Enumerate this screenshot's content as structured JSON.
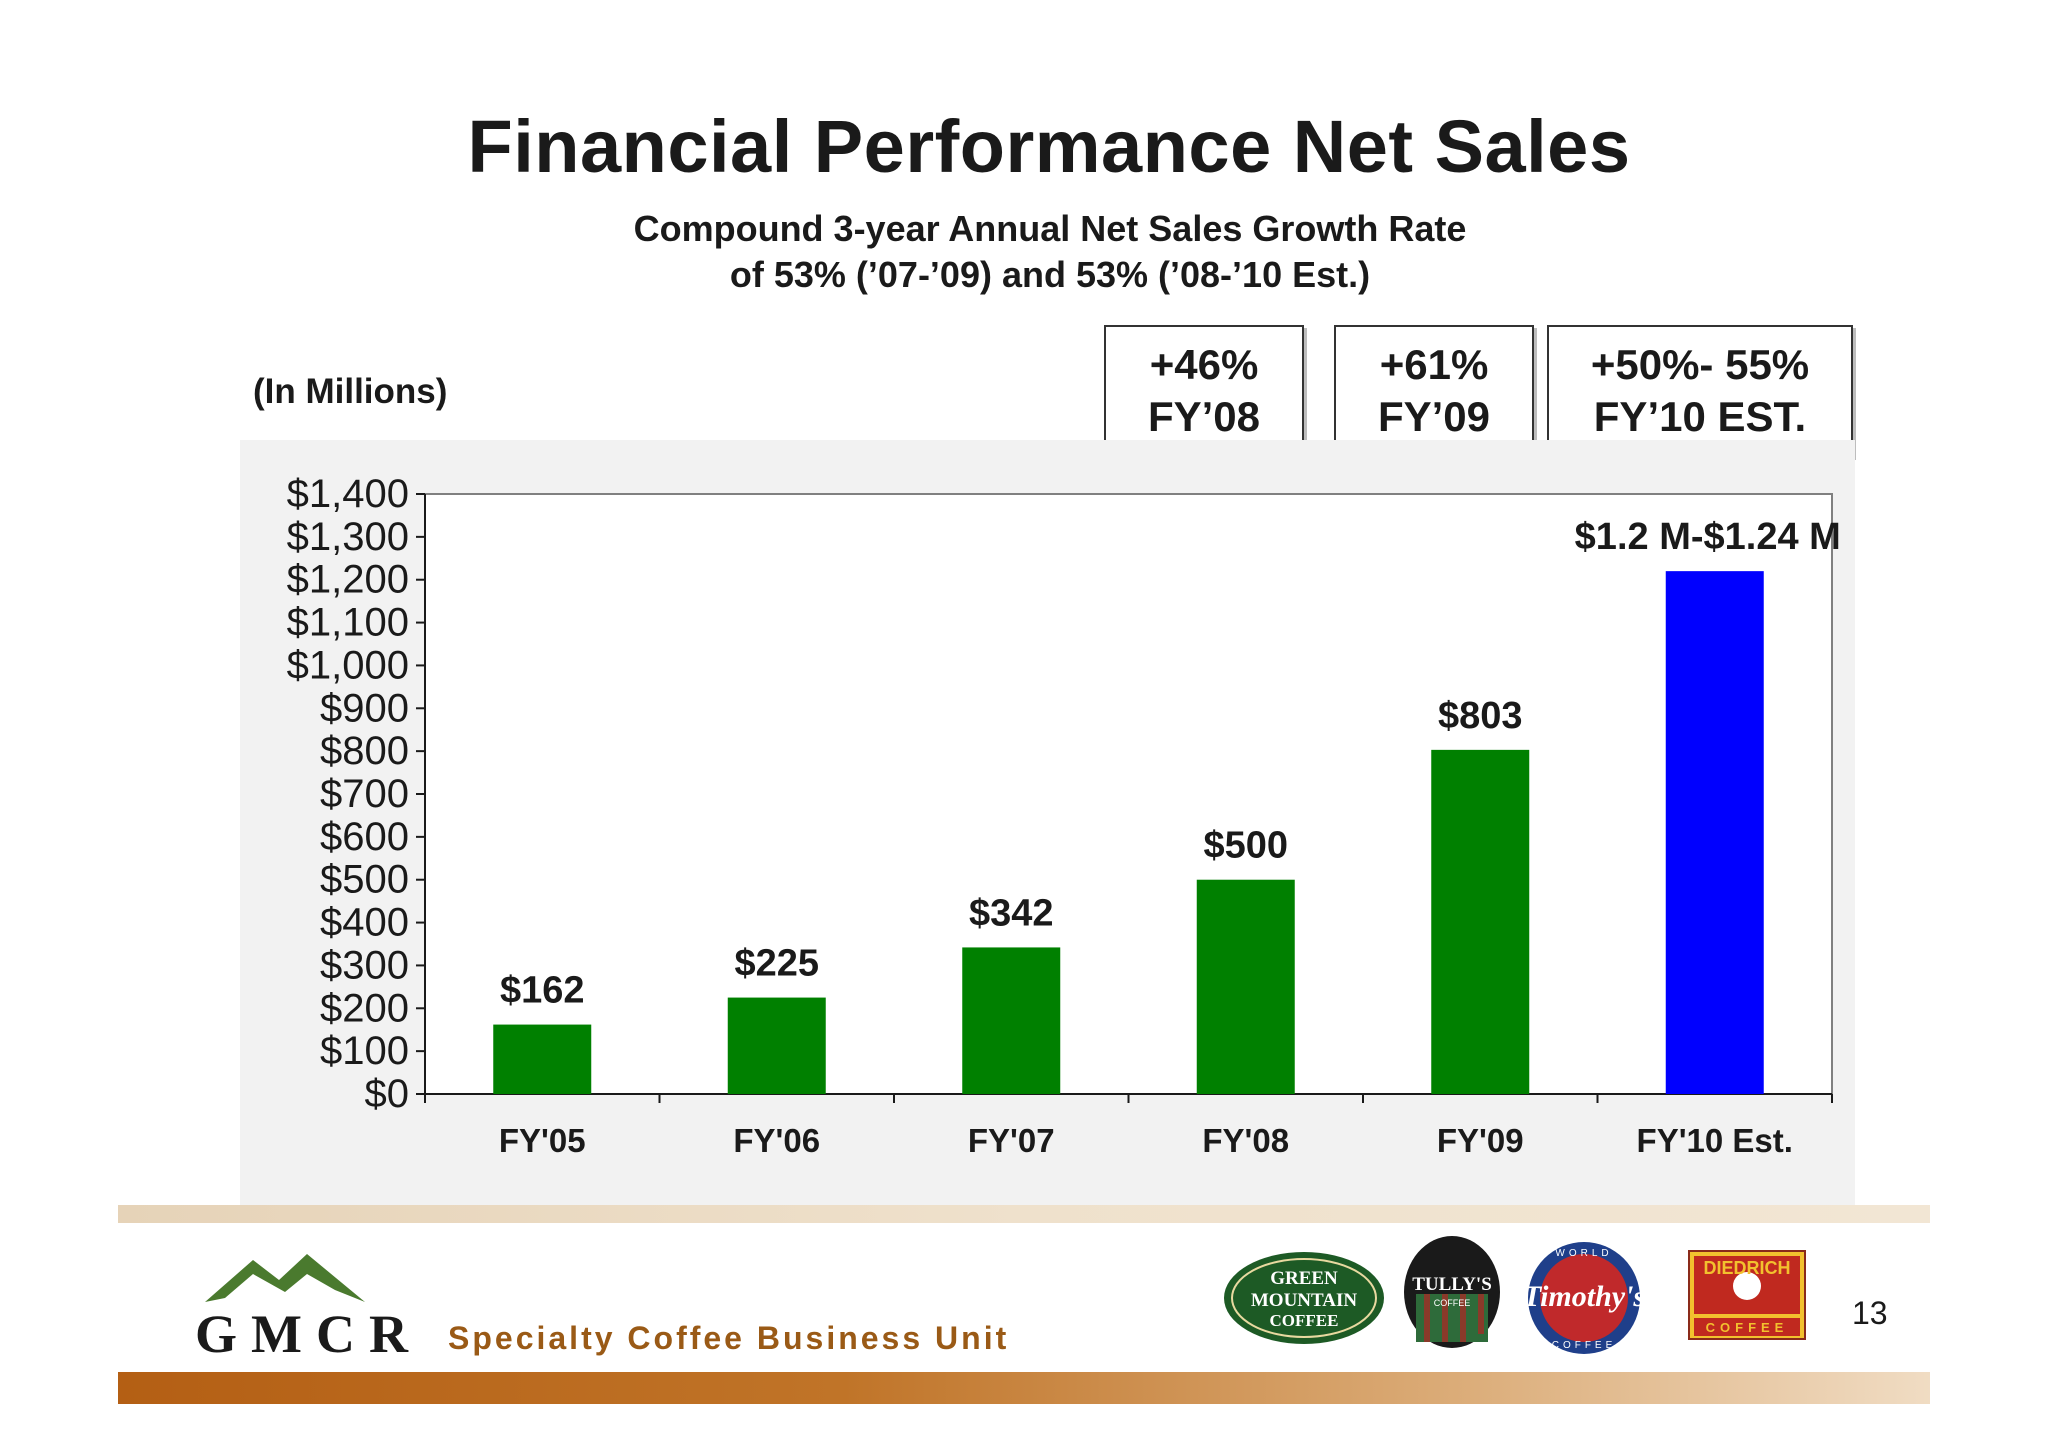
{
  "slide": {
    "title": "Financial Performance Net Sales",
    "subtitle_line1": "Compound 3-year Annual Net Sales Growth Rate",
    "subtitle_line2": "of 53% (’07-’09) and 53% (’08-’10 Est.)",
    "units": "(In Millions)",
    "page_number": "13"
  },
  "growth_boxes": [
    {
      "pct": "+46%",
      "period": "FY’08"
    },
    {
      "pct": "+61%",
      "period": "FY’09"
    },
    {
      "pct": "+50%- 55%",
      "period": "FY’10 EST."
    }
  ],
  "chart_data": {
    "type": "bar",
    "categories": [
      "FY'05",
      "FY'06",
      "FY'07",
      "FY'08",
      "FY'09",
      "FY'10 Est."
    ],
    "values": [
      162,
      225,
      342,
      500,
      803,
      1220
    ],
    "data_labels": [
      "$162",
      "$225",
      "$342",
      "$500",
      "$803",
      "$1.2 M-$1.24 M"
    ],
    "bar_colors": [
      "#008000",
      "#008000",
      "#008000",
      "#008000",
      "#008000",
      "#0000ff"
    ],
    "ylim": [
      0,
      1400
    ],
    "yticks": [
      0,
      100,
      200,
      300,
      400,
      500,
      600,
      700,
      800,
      900,
      1000,
      1100,
      1200,
      1300,
      1400
    ],
    "ytick_labels": [
      "$0",
      "$100",
      "$200",
      "$300",
      "$400",
      "$500",
      "$600",
      "$700",
      "$800",
      "$900",
      "$1,000",
      "$1,100",
      "$1,200",
      "$1,300",
      "$1,400"
    ],
    "grid": false
  },
  "footer": {
    "company": "GMCR",
    "unit_name": "Specialty Coffee Business Unit",
    "brands": [
      {
        "name": "Green Mountain Coffee",
        "line1": "GREEN",
        "line2": "MOUNTAIN",
        "line3": "COFFEE"
      },
      {
        "name": "Tully's Coffee",
        "line1": "TULLY'S",
        "line2": "COFFEE"
      },
      {
        "name": "Timothy's",
        "line1": "Timothy's",
        "arc_top": "WORLD",
        "arc_bottom": "COFFEE"
      },
      {
        "name": "Diedrich Coffee",
        "line1": "DIEDRICH",
        "line2": "COFFEE"
      }
    ]
  }
}
